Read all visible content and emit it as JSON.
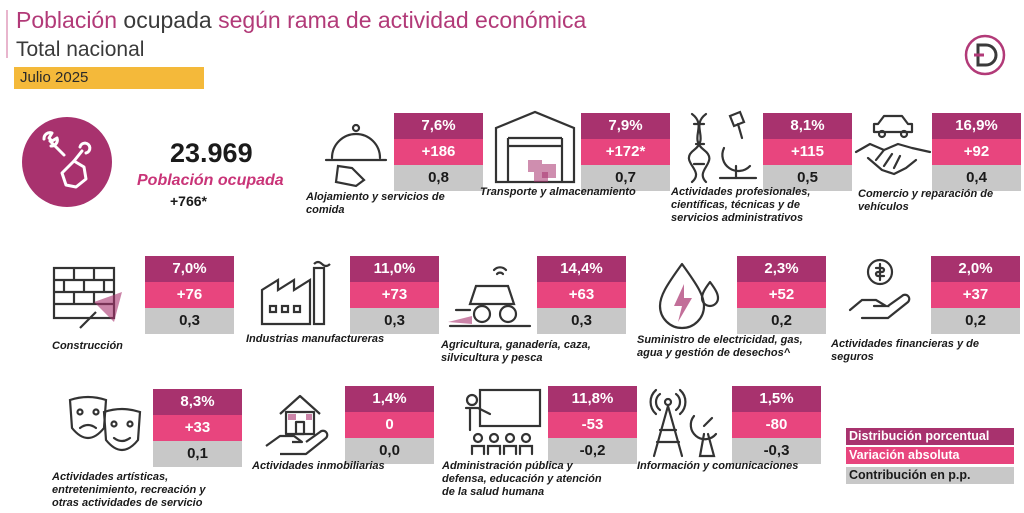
{
  "header": {
    "title_part1": "Población",
    "title_part2": "ocupada",
    "title_part3": "según rama de actividad económica",
    "subtitle": "Total nacional",
    "date": "Julio 2025"
  },
  "colors": {
    "primary": "#a8326e",
    "secondary": "#e8457e",
    "tertiary": "#c8c8c8",
    "date_badge": "#f4b93a"
  },
  "summary": {
    "value": "23.969",
    "label": "Población ocupada",
    "delta": "+766*",
    "icon": "tools-hand-icon"
  },
  "sectors": [
    {
      "name": "Alojamiento y servicios de comida",
      "icon": "cloche-icon",
      "pct": "7,6%",
      "abs": "+186",
      "pp": "0,8"
    },
    {
      "name": "Transporte y almacenamiento",
      "icon": "warehouse-icon",
      "pct": "7,9%",
      "abs": "+172*",
      "pp": "0,7"
    },
    {
      "name": "Actividades profesionales, científicas, técnicas y de servicios administrativos",
      "icon": "dna-microscope-icon",
      "pct": "8,1%",
      "abs": "+115",
      "pp": "0,5"
    },
    {
      "name": "Comercio y reparación de vehículos",
      "icon": "handshake-car-icon",
      "pct": "16,9%",
      "abs": "+92",
      "pp": "0,4"
    },
    {
      "name": "Construcción",
      "icon": "brick-trowel-icon",
      "pct": "7,0%",
      "abs": "+76",
      "pp": "0,3"
    },
    {
      "name": "Industrias manufactureras",
      "icon": "factory-icon",
      "pct": "11,0%",
      "abs": "+73",
      "pp": "0,3"
    },
    {
      "name": "Agricultura, ganadería, caza, silvicultura y pesca",
      "icon": "tractor-icon",
      "pct": "14,4%",
      "abs": "+63",
      "pp": "0,3"
    },
    {
      "name": "Suministro de electricidad, gas, agua y gestión de desechos^",
      "icon": "energy-drop-icon",
      "pct": "2,3%",
      "abs": "+52",
      "pp": "0,2"
    },
    {
      "name": "Actividades financieras y de seguros",
      "icon": "coin-hand-icon",
      "pct": "2,0%",
      "abs": "+37",
      "pp": "0,2"
    },
    {
      "name": "Actividades artísticas, entretenimiento, recreación y otras actividades de servicio",
      "icon": "theater-masks-icon",
      "pct": "8,3%",
      "abs": "+33",
      "pp": "0,1"
    },
    {
      "name": "Actividades inmobiliarias",
      "icon": "house-hand-icon",
      "pct": "1,4%",
      "abs": "0",
      "pp": "0,0"
    },
    {
      "name": "Administración pública y defensa, educación y atención de la salud humana",
      "icon": "teacher-icon",
      "pct": "11,8%",
      "abs": "-53",
      "pp": "-0,2"
    },
    {
      "name": "Información y comunicaciones",
      "icon": "antenna-icon",
      "pct": "1,5%",
      "abs": "-80",
      "pp": "-0,3"
    }
  ],
  "legend": {
    "pct": "Distribución porcentual",
    "abs": "Variación absoluta",
    "pp": "Contribución en p.p."
  }
}
